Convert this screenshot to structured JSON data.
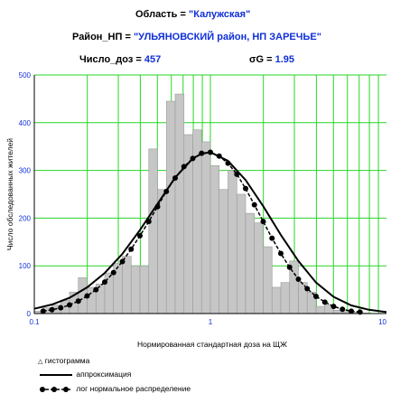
{
  "header": {
    "region_label": "Область = ",
    "region_value": "\"Калужская\"",
    "district_label": "Район_НП = ",
    "district_value": "\"УЛЬЯНОВСКИЙ район, НП ЗАРЕЧЬЕ\"",
    "count_label": "Число_доз = ",
    "count_value": "457",
    "sigma_label": "σG = ",
    "sigma_value": "1.95"
  },
  "colors": {
    "bar_fill": "#c6c6c6",
    "bar_stroke": "#9a9a9a",
    "grid": "#26d626",
    "tick_labels": "#1030d8",
    "curves": "#000000"
  },
  "chart_data": {
    "type": "bar",
    "xlabel": "Нормированная стандартная доза на ЩЖ",
    "ylabel": "Число обследованных жителей",
    "xscale": "log",
    "xlim": [
      0.1,
      10
    ],
    "ylim": [
      0,
      500
    ],
    "x_ticks": [
      "0.1",
      "1",
      "10"
    ],
    "y_ticks": [
      "0",
      "100",
      "200",
      "300",
      "400",
      "500"
    ],
    "grid": true,
    "histogram": {
      "bin_edges": [
        0.1,
        0.1122,
        0.1259,
        0.1413,
        0.1585,
        0.1778,
        0.1995,
        0.2239,
        0.2512,
        0.2818,
        0.3162,
        0.3548,
        0.3981,
        0.4467,
        0.5012,
        0.5623,
        0.631,
        0.7079,
        0.7943,
        0.8913,
        1.0,
        1.122,
        1.259,
        1.413,
        1.585,
        1.778,
        1.995,
        2.239,
        2.512,
        2.818,
        3.162,
        3.548,
        3.981,
        4.467,
        5.012,
        5.623,
        6.31,
        7.079,
        7.943,
        8.913,
        10.0
      ],
      "values": [
        5,
        12,
        18,
        28,
        45,
        75,
        55,
        62,
        85,
        105,
        120,
        100,
        100,
        345,
        260,
        445,
        460,
        375,
        385,
        360,
        310,
        260,
        300,
        250,
        210,
        190,
        140,
        55,
        65,
        110,
        65,
        45,
        15,
        18,
        7,
        4,
        2,
        1,
        0,
        0
      ]
    },
    "series": [
      {
        "name": "аппроксимация",
        "style": "solid",
        "x": [
          0.1,
          0.1259,
          0.1585,
          0.1995,
          0.2512,
          0.3162,
          0.3981,
          0.5012,
          0.631,
          0.7943,
          0.8913,
          1.0,
          1.259,
          1.585,
          1.995,
          2.512,
          3.162,
          3.981,
          5.012,
          6.31,
          7.943,
          10.0
        ],
        "y": [
          10,
          19,
          33,
          55,
          85,
          125,
          175,
          230,
          285,
          325,
          335,
          338,
          320,
          280,
          225,
          165,
          110,
          65,
          35,
          17,
          8,
          3
        ]
      },
      {
        "name": "лог нормальное распределение",
        "style": "dashed-dots",
        "x": [
          0.1122,
          0.1259,
          0.1413,
          0.1585,
          0.1778,
          0.1995,
          0.2239,
          0.2512,
          0.2818,
          0.3162,
          0.3548,
          0.3981,
          0.4467,
          0.5012,
          0.5623,
          0.631,
          0.7079,
          0.7943,
          0.8913,
          1.0,
          1.122,
          1.259,
          1.413,
          1.585,
          1.778,
          1.995,
          2.239,
          2.512,
          2.818,
          3.162,
          3.548,
          3.981,
          4.467,
          5.012,
          5.623,
          6.31,
          7.079
        ],
        "y": [
          5,
          8,
          12,
          18,
          26,
          37,
          50,
          66,
          86,
          109,
          135,
          163,
          193,
          224,
          256,
          284,
          308,
          325,
          336,
          338,
          330,
          315,
          292,
          262,
          228,
          193,
          158,
          126,
          97,
          72,
          52,
          36,
          24,
          15,
          9,
          5,
          3
        ]
      }
    ],
    "legend": {
      "position": "bottom-left",
      "entries": [
        {
          "marker": "△",
          "label": "гистограмма"
        },
        {
          "marker": "line",
          "label": "аппроксимация"
        },
        {
          "marker": "dashed-dots",
          "label": "лог нормальное распределение"
        }
      ]
    }
  }
}
